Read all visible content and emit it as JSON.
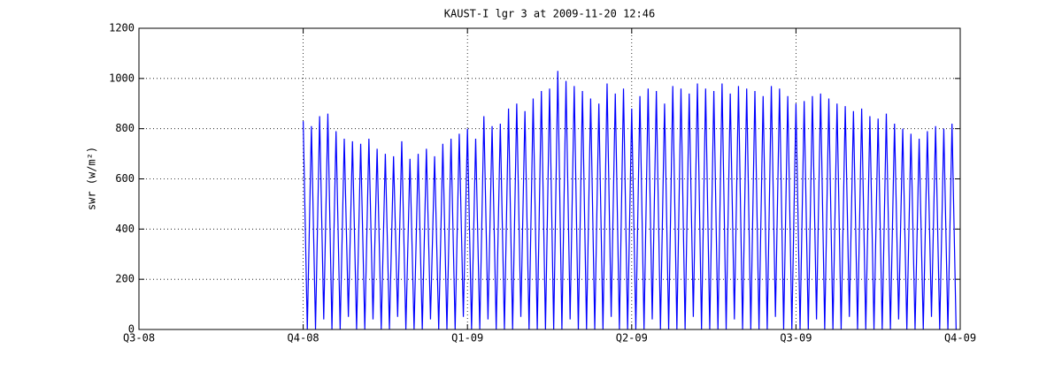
{
  "chart_data": {
    "type": "line",
    "title": "KAUST-I lgr 3 at 2009-11-20 12:46",
    "y_label": "swr (w/m²)",
    "xlim": [
      0,
      5
    ],
    "xticks": [
      {
        "value": 0,
        "label": "Q3-08"
      },
      {
        "value": 1,
        "label": "Q4-08"
      },
      {
        "value": 2,
        "label": "Q1-09"
      },
      {
        "value": 3,
        "label": "Q2-09"
      },
      {
        "value": 4,
        "label": "Q3-09"
      },
      {
        "value": 5,
        "label": "Q4-09"
      }
    ],
    "ylim": [
      0,
      1200
    ],
    "yticks": [
      0,
      200,
      400,
      600,
      800,
      1000,
      1200
    ],
    "grid": true,
    "series": [
      {
        "name": "swr",
        "color": "#0000ff",
        "x": [
          1,
          1.025,
          1.05,
          1.075,
          1.1,
          1.125,
          1.15,
          1.175,
          1.2,
          1.225,
          1.25,
          1.275,
          1.3,
          1.325,
          1.35,
          1.375,
          1.4,
          1.425,
          1.45,
          1.475,
          1.5,
          1.525,
          1.55,
          1.575,
          1.6,
          1.625,
          1.65,
          1.675,
          1.7,
          1.725,
          1.75,
          1.775,
          1.8,
          1.825,
          1.85,
          1.875,
          1.9,
          1.925,
          1.95,
          1.975,
          2,
          2.025,
          2.05,
          2.075,
          2.1,
          2.125,
          2.15,
          2.175,
          2.2,
          2.225,
          2.25,
          2.275,
          2.3,
          2.325,
          2.35,
          2.375,
          2.4,
          2.425,
          2.45,
          2.475,
          2.5,
          2.525,
          2.55,
          2.575,
          2.6,
          2.625,
          2.65,
          2.675,
          2.7,
          2.725,
          2.75,
          2.775,
          2.8,
          2.825,
          2.85,
          2.875,
          2.9,
          2.925,
          2.95,
          2.975,
          3,
          3.025,
          3.05,
          3.075,
          3.1,
          3.125,
          3.15,
          3.175,
          3.2,
          3.225,
          3.25,
          3.275,
          3.3,
          3.325,
          3.35,
          3.375,
          3.4,
          3.425,
          3.45,
          3.475,
          3.5,
          3.525,
          3.55,
          3.575,
          3.6,
          3.625,
          3.65,
          3.675,
          3.7,
          3.725,
          3.75,
          3.775,
          3.8,
          3.825,
          3.85,
          3.875,
          3.9,
          3.925,
          3.95,
          3.975,
          4,
          4.025,
          4.05,
          4.075,
          4.1,
          4.125,
          4.15,
          4.175,
          4.2,
          4.225,
          4.25,
          4.275,
          4.3,
          4.325,
          4.35,
          4.375,
          4.4,
          4.425,
          4.45,
          4.475,
          4.5,
          4.525,
          4.55,
          4.575,
          4.6,
          4.625,
          4.65,
          4.675,
          4.7,
          4.725,
          4.75,
          4.775,
          4.8,
          4.825,
          4.85,
          4.875,
          4.9,
          4.925,
          4.95,
          4.975
        ],
        "values": [
          830,
          0,
          810,
          0,
          850,
          40,
          860,
          0,
          790,
          0,
          760,
          50,
          750,
          0,
          740,
          0,
          760,
          40,
          720,
          0,
          700,
          0,
          690,
          50,
          750,
          0,
          680,
          0,
          700,
          0,
          720,
          40,
          690,
          0,
          740,
          0,
          760,
          0,
          780,
          50,
          800,
          0,
          760,
          0,
          850,
          40,
          810,
          0,
          820,
          0,
          880,
          0,
          900,
          50,
          870,
          0,
          920,
          0,
          950,
          0,
          960,
          0,
          1030,
          0,
          990,
          40,
          970,
          0,
          950,
          0,
          920,
          0,
          900,
          0,
          980,
          50,
          940,
          0,
          960,
          0,
          880,
          0,
          930,
          0,
          960,
          40,
          950,
          0,
          900,
          0,
          970,
          0,
          960,
          0,
          940,
          50,
          980,
          0,
          960,
          0,
          950,
          0,
          980,
          0,
          940,
          40,
          970,
          0,
          960,
          0,
          950,
          0,
          930,
          0,
          970,
          50,
          960,
          0,
          930,
          0,
          900,
          0,
          910,
          0,
          930,
          40,
          940,
          0,
          920,
          0,
          900,
          0,
          890,
          50,
          870,
          0,
          880,
          0,
          850,
          0,
          840,
          0,
          860,
          0,
          820,
          40,
          800,
          0,
          780,
          0,
          760,
          0,
          790,
          50,
          810,
          0,
          800,
          0,
          820,
          0
        ]
      }
    ]
  }
}
